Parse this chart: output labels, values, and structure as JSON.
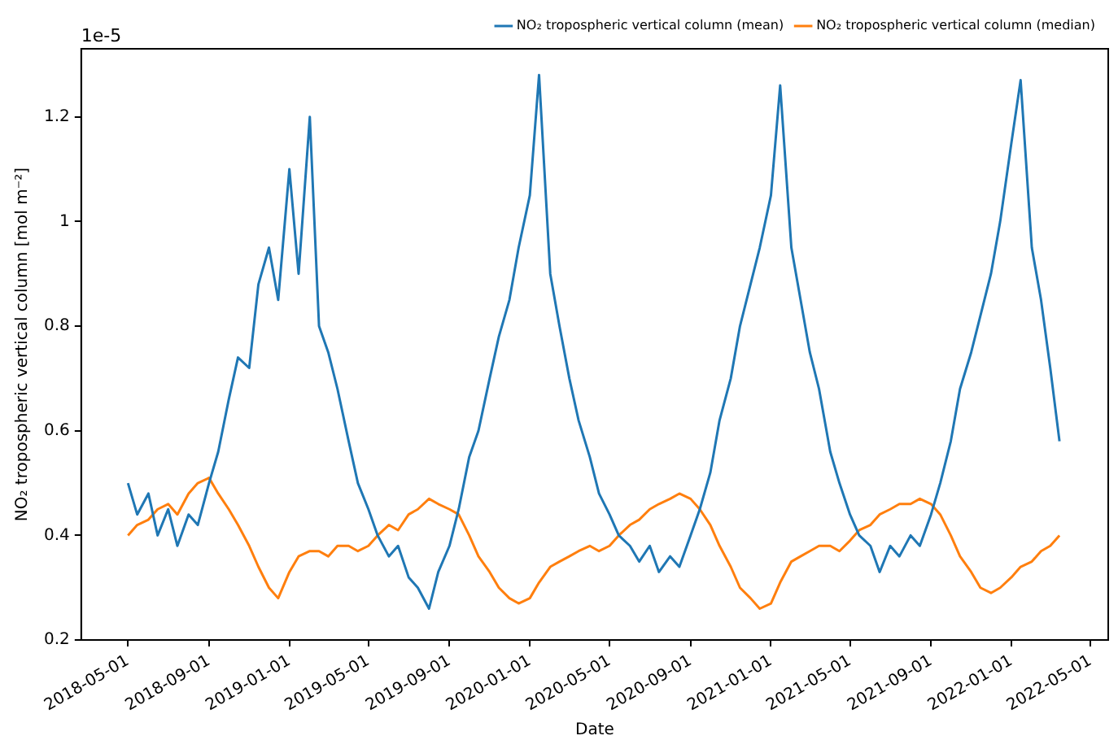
{
  "chart_data": {
    "type": "line",
    "xlabel": "Date",
    "ylabel": "NO₂ tropospheric vertical column [mol m⁻²]",
    "annotations": [
      "1e-5"
    ],
    "x": [
      "2018-05-01",
      "2018-05-15",
      "2018-06-01",
      "2018-06-15",
      "2018-07-01",
      "2018-07-15",
      "2018-08-01",
      "2018-08-15",
      "2018-09-01",
      "2018-09-15",
      "2018-10-01",
      "2018-10-15",
      "2018-11-01",
      "2018-11-15",
      "2018-12-01",
      "2018-12-15",
      "2019-01-01",
      "2019-01-15",
      "2019-02-01",
      "2019-02-15",
      "2019-03-01",
      "2019-03-15",
      "2019-04-01",
      "2019-04-15",
      "2019-05-01",
      "2019-05-15",
      "2019-06-01",
      "2019-06-15",
      "2019-07-01",
      "2019-07-15",
      "2019-08-01",
      "2019-08-15",
      "2019-09-01",
      "2019-09-15",
      "2019-10-01",
      "2019-10-15",
      "2019-11-01",
      "2019-11-15",
      "2019-12-01",
      "2019-12-15",
      "2020-01-01",
      "2020-01-15",
      "2020-02-01",
      "2020-02-15",
      "2020-03-01",
      "2020-03-15",
      "2020-04-01",
      "2020-04-15",
      "2020-05-01",
      "2020-05-15",
      "2020-06-01",
      "2020-06-15",
      "2020-07-01",
      "2020-07-15",
      "2020-08-01",
      "2020-08-15",
      "2020-09-01",
      "2020-09-15",
      "2020-10-01",
      "2020-10-15",
      "2020-11-01",
      "2020-11-15",
      "2020-12-01",
      "2020-12-15",
      "2021-01-01",
      "2021-01-15",
      "2021-02-01",
      "2021-02-15",
      "2021-03-01",
      "2021-03-15",
      "2021-04-01",
      "2021-04-15",
      "2021-05-01",
      "2021-05-15",
      "2021-06-01",
      "2021-06-15",
      "2021-07-01",
      "2021-07-15",
      "2021-08-01",
      "2021-08-15",
      "2021-09-01",
      "2021-09-15",
      "2021-10-01",
      "2021-10-15",
      "2021-11-01",
      "2021-11-15",
      "2021-12-01",
      "2021-12-15",
      "2022-01-01",
      "2022-01-15",
      "2022-02-01",
      "2022-02-15",
      "2022-03-01",
      "2022-03-15"
    ],
    "series": [
      {
        "name": "NO₂ tropospheric vertical column (mean)",
        "color": "#1f77b4",
        "values": [
          0.5,
          0.44,
          0.48,
          0.4,
          0.45,
          0.38,
          0.44,
          0.42,
          0.5,
          0.56,
          0.66,
          0.74,
          0.72,
          0.88,
          0.95,
          0.85,
          1.1,
          0.9,
          1.2,
          0.8,
          0.75,
          0.68,
          0.58,
          0.5,
          0.45,
          0.4,
          0.36,
          0.38,
          0.32,
          0.3,
          0.26,
          0.33,
          0.38,
          0.45,
          0.55,
          0.6,
          0.7,
          0.78,
          0.85,
          0.95,
          1.05,
          1.28,
          0.9,
          0.8,
          0.7,
          0.62,
          0.55,
          0.48,
          0.44,
          0.4,
          0.38,
          0.35,
          0.38,
          0.33,
          0.36,
          0.34,
          0.4,
          0.45,
          0.52,
          0.62,
          0.7,
          0.8,
          0.88,
          0.95,
          1.05,
          1.26,
          0.95,
          0.85,
          0.75,
          0.68,
          0.56,
          0.5,
          0.44,
          0.4,
          0.38,
          0.33,
          0.38,
          0.36,
          0.4,
          0.38,
          0.44,
          0.5,
          0.58,
          0.68,
          0.75,
          0.82,
          0.9,
          1.0,
          1.15,
          1.27,
          0.95,
          0.85,
          0.72,
          0.58
        ]
      },
      {
        "name": "NO₂ tropospheric vertical column (median)",
        "color": "#ff7f0e",
        "values": [
          0.4,
          0.42,
          0.43,
          0.45,
          0.46,
          0.44,
          0.48,
          0.5,
          0.51,
          0.48,
          0.45,
          0.42,
          0.38,
          0.34,
          0.3,
          0.28,
          0.33,
          0.36,
          0.37,
          0.37,
          0.36,
          0.38,
          0.38,
          0.37,
          0.38,
          0.4,
          0.42,
          0.41,
          0.44,
          0.45,
          0.47,
          0.46,
          0.45,
          0.44,
          0.4,
          0.36,
          0.33,
          0.3,
          0.28,
          0.27,
          0.28,
          0.31,
          0.34,
          0.35,
          0.36,
          0.37,
          0.38,
          0.37,
          0.38,
          0.4,
          0.42,
          0.43,
          0.45,
          0.46,
          0.47,
          0.48,
          0.47,
          0.45,
          0.42,
          0.38,
          0.34,
          0.3,
          0.28,
          0.26,
          0.27,
          0.31,
          0.35,
          0.36,
          0.37,
          0.38,
          0.38,
          0.37,
          0.39,
          0.41,
          0.42,
          0.44,
          0.45,
          0.46,
          0.46,
          0.47,
          0.46,
          0.44,
          0.4,
          0.36,
          0.33,
          0.3,
          0.29,
          0.3,
          0.32,
          0.34,
          0.35,
          0.37,
          0.38,
          0.4
        ]
      }
    ],
    "xlim": [
      "2018-02-19",
      "2022-05-28"
    ],
    "xticks": [
      "2018-05-01",
      "2018-09-01",
      "2019-01-01",
      "2019-05-01",
      "2019-09-01",
      "2020-01-01",
      "2020-05-01",
      "2020-09-01",
      "2021-01-01",
      "2021-05-01",
      "2021-09-01",
      "2022-01-01",
      "2022-05-01"
    ],
    "ylim": [
      0.2,
      1.33
    ],
    "yticks": [
      0.2,
      0.4,
      0.6,
      0.8,
      1.0,
      1.2
    ],
    "legend": "top right",
    "grid": false,
    "marker": "none",
    "line_style": "solid"
  }
}
